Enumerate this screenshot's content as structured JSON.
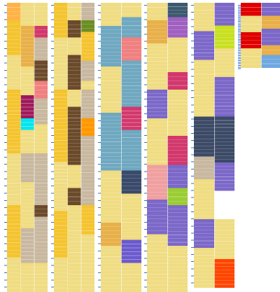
{
  "chart_data": {
    "type": "heatmap",
    "description_note": "",
    "columns": [
      {
        "blocks": [
          {
            "color": "#F0DC82",
            "subcolumns": [
              {
                "color": "#FFB347",
                "runs": [
                  [
                    0,
                    0.06,
                    "#FFB347"
                  ],
                  [
                    0.06,
                    0.18,
                    "#F4C430"
                  ],
                  [
                    0.18,
                    0.3,
                    "#F0DC82"
                  ],
                  [
                    0.3,
                    0.52,
                    "#F4C430"
                  ],
                  [
                    0.52,
                    0.7,
                    "#F0DC82"
                  ],
                  [
                    0.7,
                    0.88,
                    "#F4C430"
                  ],
                  [
                    0.88,
                    1.0,
                    "#F0DC82"
                  ]
                ]
              },
              {
                "color": "#F0DC82",
                "runs": [
                  [
                    0,
                    0.08,
                    "#F0DC82"
                  ],
                  [
                    0.08,
                    0.22,
                    "#E8B04A"
                  ],
                  [
                    0.22,
                    0.32,
                    "#F0DC82"
                  ],
                  [
                    0.32,
                    0.4,
                    "#9E1A5C"
                  ],
                  [
                    0.4,
                    0.44,
                    "#00E5EE"
                  ],
                  [
                    0.44,
                    0.52,
                    "#F0DC82"
                  ],
                  [
                    0.52,
                    0.62,
                    "#C8B8A0"
                  ],
                  [
                    0.62,
                    0.78,
                    "#F0DC82"
                  ],
                  [
                    0.78,
                    0.9,
                    "#C8B8A0"
                  ],
                  [
                    0.9,
                    1.0,
                    "#F0DC82"
                  ]
                ]
              },
              {
                "color": "#C8B8A0",
                "runs": [
                  [
                    0,
                    0.08,
                    "#F0DC82"
                  ],
                  [
                    0.08,
                    0.12,
                    "#D2386C"
                  ],
                  [
                    0.12,
                    0.2,
                    "#C8B8A0"
                  ],
                  [
                    0.2,
                    0.27,
                    "#6B4A2B"
                  ],
                  [
                    0.27,
                    0.33,
                    "#F08080"
                  ],
                  [
                    0.33,
                    0.42,
                    "#C8B8A0"
                  ],
                  [
                    0.42,
                    0.52,
                    "#F0DC82"
                  ],
                  [
                    0.52,
                    0.7,
                    "#C8B8A0"
                  ],
                  [
                    0.7,
                    0.74,
                    "#6B4A2B"
                  ],
                  [
                    0.74,
                    0.9,
                    "#C8B8A0"
                  ],
                  [
                    0.9,
                    1.0,
                    "#F0DC82"
                  ]
                ]
              }
            ]
          }
        ]
      },
      {
        "blocks": [
          {
            "color": "#F0DC82",
            "subcolumns": [
              {
                "color": "#F4C430",
                "runs": [
                  [
                    0,
                    0.12,
                    "#F4C430"
                  ],
                  [
                    0.12,
                    0.3,
                    "#F0DC82"
                  ],
                  [
                    0.3,
                    0.55,
                    "#F4C430"
                  ],
                  [
                    0.55,
                    0.72,
                    "#F0DC82"
                  ],
                  [
                    0.72,
                    0.88,
                    "#F4C430"
                  ],
                  [
                    0.88,
                    1.0,
                    "#F0DC82"
                  ]
                ]
              },
              {
                "color": "#6B4A2B",
                "runs": [
                  [
                    0,
                    0.06,
                    "#F0DC82"
                  ],
                  [
                    0.06,
                    0.12,
                    "#6B4A2B"
                  ],
                  [
                    0.12,
                    0.18,
                    "#F0DC82"
                  ],
                  [
                    0.18,
                    0.3,
                    "#6B4A2B"
                  ],
                  [
                    0.3,
                    0.36,
                    "#F0DC82"
                  ],
                  [
                    0.36,
                    0.56,
                    "#6B4A2B"
                  ],
                  [
                    0.56,
                    0.64,
                    "#F0DC82"
                  ],
                  [
                    0.64,
                    0.7,
                    "#6B4A2B"
                  ],
                  [
                    0.7,
                    1.0,
                    "#F0DC82"
                  ]
                ]
              },
              {
                "color": "#C8B8A0",
                "runs": [
                  [
                    0,
                    0.06,
                    "#C8B8A0"
                  ],
                  [
                    0.06,
                    0.1,
                    "#6B8E23"
                  ],
                  [
                    0.1,
                    0.2,
                    "#F4C430"
                  ],
                  [
                    0.2,
                    0.27,
                    "#C8B8A0"
                  ],
                  [
                    0.27,
                    0.3,
                    "#F0DC82"
                  ],
                  [
                    0.3,
                    0.4,
                    "#C8B8A0"
                  ],
                  [
                    0.4,
                    0.46,
                    "#FF9900"
                  ],
                  [
                    0.46,
                    0.7,
                    "#C8B8A0"
                  ],
                  [
                    0.7,
                    0.8,
                    "#F4C430"
                  ],
                  [
                    0.8,
                    1.0,
                    "#F0DC82"
                  ]
                ]
              }
            ]
          }
        ]
      },
      {
        "blocks": [
          {
            "color": "#F0DC82",
            "subcolumns": [
              {
                "color": "#F0DC82",
                "runs": [
                  [
                    0,
                    0.08,
                    "#F0DC82"
                  ],
                  [
                    0.08,
                    0.22,
                    "#6FA8C0"
                  ],
                  [
                    0.22,
                    0.38,
                    "#F0DC82"
                  ],
                  [
                    0.38,
                    0.58,
                    "#6FA8C0"
                  ],
                  [
                    0.58,
                    0.76,
                    "#F0DC82"
                  ],
                  [
                    0.76,
                    0.84,
                    "#E8B04A"
                  ],
                  [
                    0.84,
                    1.0,
                    "#F0DC82"
                  ]
                ]
              },
              {
                "color": "#6FA8C0",
                "runs": [
                  [
                    0,
                    0.05,
                    "#F0DC82"
                  ],
                  [
                    0.05,
                    0.12,
                    "#6FA8C0"
                  ],
                  [
                    0.12,
                    0.2,
                    "#F08080"
                  ],
                  [
                    0.2,
                    0.36,
                    "#6FA8C0"
                  ],
                  [
                    0.36,
                    0.44,
                    "#D2386C"
                  ],
                  [
                    0.44,
                    0.58,
                    "#6FA8C0"
                  ],
                  [
                    0.58,
                    0.66,
                    "#3A4A6A"
                  ],
                  [
                    0.66,
                    0.82,
                    "#F0DC82"
                  ],
                  [
                    0.82,
                    0.9,
                    "#6A5ACD"
                  ],
                  [
                    0.9,
                    1.0,
                    "#F0DC82"
                  ]
                ]
              }
            ]
          }
        ]
      },
      {
        "blocks": [
          {
            "color": "#F0DC82",
            "subcolumns": [
              {
                "color": "#F0DC82",
                "runs": [
                  [
                    0,
                    0.06,
                    "#F0DC82"
                  ],
                  [
                    0.06,
                    0.14,
                    "#E8B04A"
                  ],
                  [
                    0.14,
                    0.3,
                    "#F0DC82"
                  ],
                  [
                    0.3,
                    0.4,
                    "#7B68C8"
                  ],
                  [
                    0.4,
                    0.56,
                    "#F0DC82"
                  ],
                  [
                    0.56,
                    0.68,
                    "#F0A0A0"
                  ],
                  [
                    0.68,
                    0.8,
                    "#7B68C8"
                  ],
                  [
                    0.8,
                    1.0,
                    "#F0DC82"
                  ]
                ]
              },
              {
                "color": "#7B68C8",
                "runs": [
                  [
                    0,
                    0.05,
                    "#3C5A6E"
                  ],
                  [
                    0.05,
                    0.12,
                    "#A060C0"
                  ],
                  [
                    0.12,
                    0.24,
                    "#F0DC82"
                  ],
                  [
                    0.24,
                    0.3,
                    "#D2386C"
                  ],
                  [
                    0.3,
                    0.46,
                    "#F0DC82"
                  ],
                  [
                    0.46,
                    0.56,
                    "#D2386C"
                  ],
                  [
                    0.56,
                    0.64,
                    "#7B68C8"
                  ],
                  [
                    0.64,
                    0.7,
                    "#9ACD32"
                  ],
                  [
                    0.7,
                    0.84,
                    "#7B68C8"
                  ],
                  [
                    0.84,
                    1.0,
                    "#F0DC82"
                  ]
                ]
              }
            ]
          }
        ]
      },
      {
        "blocks": [
          {
            "color": "#F0DC82",
            "height": 0.985,
            "subcolumns": [
              {
                "color": "#F0DC82",
                "runs": [
                  [
                    0,
                    0.1,
                    "#F0DC82"
                  ],
                  [
                    0.1,
                    0.2,
                    "#7B68C8"
                  ],
                  [
                    0.2,
                    0.4,
                    "#F0DC82"
                  ],
                  [
                    0.4,
                    0.54,
                    "#3C4A66"
                  ],
                  [
                    0.54,
                    0.62,
                    "#C8B8A0"
                  ],
                  [
                    0.62,
                    0.76,
                    "#F0DC82"
                  ],
                  [
                    0.76,
                    0.86,
                    "#7B68C8"
                  ],
                  [
                    0.86,
                    1.0,
                    "#F0DC82"
                  ]
                ]
              },
              {
                "color": "#7B68C8",
                "runs": [
                  [
                    0,
                    0.08,
                    "#7B68C8"
                  ],
                  [
                    0.08,
                    0.16,
                    "#C8E020"
                  ],
                  [
                    0.16,
                    0.26,
                    "#F0DC82"
                  ],
                  [
                    0.26,
                    0.4,
                    "#7B68C8"
                  ],
                  [
                    0.4,
                    0.56,
                    "#3C4A66"
                  ],
                  [
                    0.56,
                    0.66,
                    "#7B68C8"
                  ],
                  [
                    0.66,
                    0.76,
                    "#FFFFFF"
                  ],
                  [
                    0.76,
                    0.9,
                    "#F0DC82"
                  ],
                  [
                    0.9,
                    1.0,
                    "#FF4500"
                  ]
                ]
              }
            ]
          }
        ]
      },
      {
        "blocks": [
          {
            "color": "#F0DC82",
            "height": 0.225,
            "subcolumns": [
              {
                "color": "#F0DC82",
                "runs": [
                  [
                    0,
                    0.2,
                    "#E00000"
                  ],
                  [
                    0.2,
                    0.45,
                    "#F0DC82"
                  ],
                  [
                    0.45,
                    0.7,
                    "#E00000"
                  ],
                  [
                    0.7,
                    1.0,
                    "#F0DC82"
                  ]
                ]
              },
              {
                "color": "#7B68C8",
                "runs": [
                  [
                    0,
                    0.2,
                    "#7B68C8"
                  ],
                  [
                    0.2,
                    0.4,
                    "#E8B04A"
                  ],
                  [
                    0.4,
                    0.65,
                    "#7B68C8"
                  ],
                  [
                    0.65,
                    0.8,
                    "#E8B04A"
                  ],
                  [
                    0.8,
                    1.0,
                    "#6FA8E0"
                  ]
                ]
              }
            ]
          }
        ]
      }
    ]
  }
}
